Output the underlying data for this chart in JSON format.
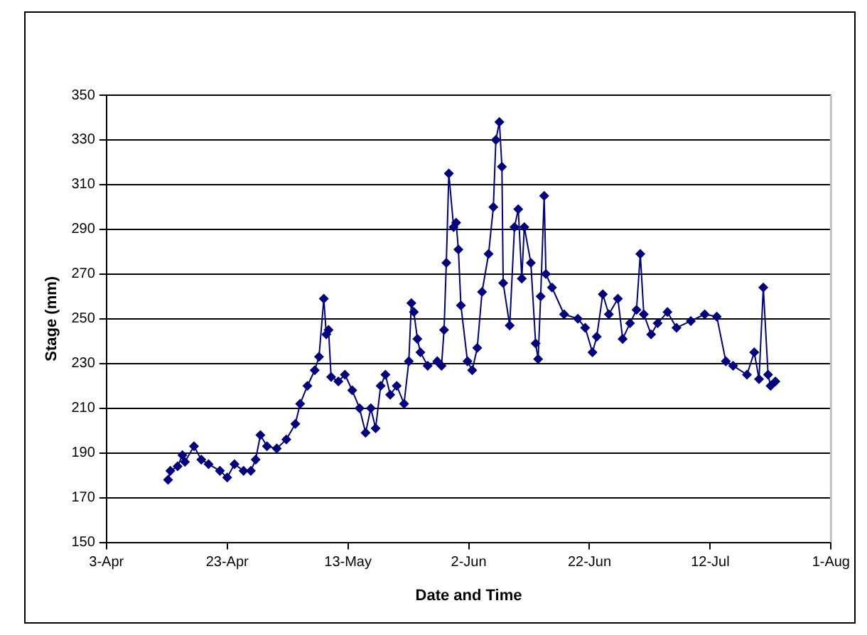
{
  "chart_data": {
    "type": "line",
    "xlabel": "Date and Time",
    "ylabel": "Stage (mm)",
    "marker": "diamond",
    "grid": "y",
    "line_style": "solid",
    "xlim": [
      "--04-03",
      "--08-01"
    ],
    "xticks": [
      {
        "value": "--04-03",
        "label": "3-Apr"
      },
      {
        "value": "--04-23",
        "label": "23-Apr"
      },
      {
        "value": "--05-13",
        "label": "13-May"
      },
      {
        "value": "--06-02",
        "label": "2-Jun"
      },
      {
        "value": "--06-22",
        "label": "22-Jun"
      },
      {
        "value": "--07-12",
        "label": "12-Jul"
      },
      {
        "value": "--08-01",
        "label": "1-Aug"
      }
    ],
    "ylim": [
      150,
      350
    ],
    "yticks": [
      150,
      170,
      190,
      210,
      230,
      250,
      270,
      290,
      310,
      330,
      350
    ],
    "series": [
      {
        "color": "#000080",
        "x": [
          "--04-13T05:00",
          "--04-13T14:00",
          "--04-14T19:00",
          "--04-15T14:00",
          "--04-16T00:00",
          "--04-17T12:00",
          "--04-18T17:00",
          "--04-19T22:00",
          "--04-21T19:00",
          "--04-23T00:00",
          "--04-24T05:00",
          "--04-25T17:00",
          "--04-26T22:00",
          "--04-27T17:00",
          "--04-28T12:00",
          "--04-29T14:00",
          "--05-01T05:00",
          "--05-02T19:00",
          "--05-04T07:00",
          "--05-05T02:00",
          "--05-06T07:00",
          "--05-07T12:00",
          "--05-08T05:00",
          "--05-09T00:00",
          "--05-09T10:00",
          "--05-09T19:00",
          "--05-10T05:00",
          "--05-11T10:00",
          "--05-12T12:00",
          "--05-13T17:00",
          "--05-14T22:00",
          "--05-15T22:00",
          "--05-16T19:00",
          "--05-17T14:00",
          "--05-18T10:00",
          "--05-19T05:00",
          "--05-20T00:00",
          "--05-21T02:00",
          "--05-22T07:00",
          "--05-23T02:00",
          "--05-23T12:00",
          "--05-23T22:00",
          "--05-24T12:00",
          "--05-25T00:00",
          "--05-26T05:00",
          "--05-27T19:00",
          "--05-28T12:00",
          "--05-28T22:00",
          "--05-29T07:00",
          "--05-29T17:00",
          "--05-30T12:00",
          "--05-30T22:00",
          "--05-31T07:00",
          "--05-31T17:00",
          "--06-01T19:00",
          "--06-02T14:00",
          "--06-03T10:00",
          "--06-04T05:00",
          "--06-05T07:00",
          "--06-06T02:00",
          "--06-06T12:00",
          "--06-07T02:00",
          "--06-07T12:00",
          "--06-07T17:00",
          "--06-08T19:00",
          "--06-09T14:00",
          "--06-10T05:00",
          "--06-10T19:00",
          "--06-11T05:00",
          "--06-12T07:00",
          "--06-13T02:00",
          "--06-13T12:00",
          "--06-13T22:00",
          "--06-14T12:00",
          "--06-14T19:00",
          "--06-15T19:00",
          "--06-17T19:00",
          "--06-20T02:00",
          "--06-21T07:00",
          "--06-22T12:00",
          "--06-23T05:00",
          "--06-24T05:00",
          "--06-25T05:00",
          "--06-26T17:00",
          "--06-27T12:00",
          "--06-28T17:00",
          "--06-29T19:00",
          "--06-30T10:00",
          "--07-01T00:00",
          "--07-02T05:00",
          "--07-03T07:00",
          "--07-04T22:00",
          "--07-06T10:00",
          "--07-08T19:00",
          "--07-11T02:00",
          "--07-13T02:00",
          "--07-14T14:00",
          "--07-15T19:00",
          "--07-18T02:00",
          "--07-19T07:00",
          "--07-20T02:00",
          "--07-20T19:00",
          "--07-21T14:00",
          "--07-22T00:00",
          "--07-22T19:00"
        ],
        "values": [
          178,
          182,
          184,
          189,
          186,
          193,
          187,
          185,
          182,
          179,
          185,
          182,
          182,
          187,
          198,
          193,
          192,
          196,
          203,
          212,
          220,
          227,
          233,
          259,
          243,
          245,
          224,
          222,
          225,
          218,
          210,
          199,
          210,
          201,
          220,
          225,
          216,
          220,
          212,
          231,
          257,
          253,
          241,
          235,
          229,
          231,
          229,
          245,
          275,
          315,
          291,
          293,
          281,
          256,
          231,
          227,
          237,
          262,
          279,
          300,
          330,
          338,
          318,
          266,
          247,
          291,
          299,
          268,
          291,
          275,
          239,
          232,
          260,
          305,
          270,
          264,
          252,
          250,
          246,
          235,
          242,
          261,
          252,
          259,
          241,
          248,
          254,
          279,
          252,
          243,
          248,
          253,
          246,
          249,
          252,
          251,
          231,
          229,
          225,
          235,
          223,
          264,
          225,
          220,
          222
        ]
      }
    ]
  }
}
